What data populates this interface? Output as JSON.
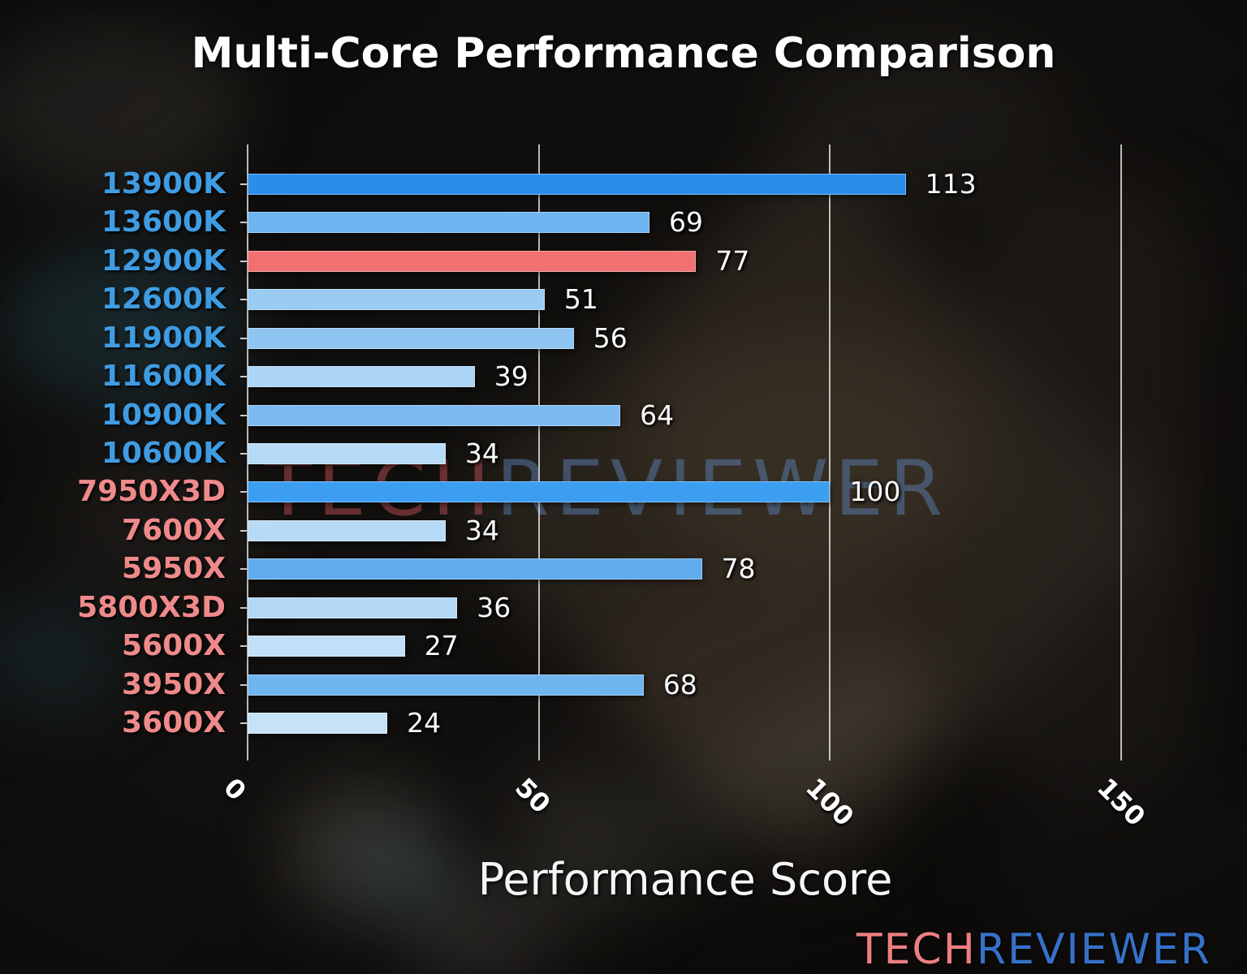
{
  "chart_data": {
    "type": "bar",
    "orientation": "horizontal",
    "title": "Multi-Core Performance Comparison",
    "xlabel": "Performance Score",
    "xlim": [
      0,
      161
    ],
    "xticks": [
      "0",
      "50",
      "100",
      "150"
    ],
    "xtick_values": [
      0,
      50,
      100,
      150
    ],
    "grid": true,
    "legend": "none",
    "categories": [
      "13900K",
      "13600K",
      "12900K",
      "12600K",
      "11900K",
      "11600K",
      "10900K",
      "10600K",
      "7950X3D",
      "7600X",
      "5950X",
      "5800X3D",
      "5600X",
      "3950X",
      "3600X"
    ],
    "values": [
      113,
      69,
      77,
      51,
      56,
      39,
      64,
      34,
      100,
      34,
      78,
      36,
      27,
      68,
      24
    ],
    "value_labels": [
      "113",
      "69",
      "77",
      "51",
      "56",
      "39",
      "64",
      "34",
      "100",
      "34",
      "78",
      "36",
      "27",
      "68",
      "24"
    ],
    "bar_colors": [
      "#2a8ee9",
      "#6db4f0",
      "#f17070",
      "#99cbf3",
      "#8dc4f2",
      "#abd4f5",
      "#7cbbf1",
      "#b7daf6",
      "#3b9ef1",
      "#b7daf6",
      "#5fabee",
      "#b2d8f5",
      "#c1dff7",
      "#6fb5f0",
      "#c6e2f8"
    ],
    "label_colors": [
      "#3f9ce2",
      "#3f9ce2",
      "#3f9ce2",
      "#3f9ce2",
      "#3f9ce2",
      "#3f9ce2",
      "#3f9ce2",
      "#3f9ce2",
      "#ef8a8a",
      "#ef8a8a",
      "#ef8a8a",
      "#ef8a8a",
      "#ef8a8a",
      "#ef8a8a",
      "#ef8a8a"
    ],
    "highlight_category": "12900K",
    "highlight_color": "#f17070",
    "grid_color": "#e9e6e3",
    "value_text_color": "#fafafa"
  },
  "watermark": {
    "text_left": "TECH",
    "text_right": "REVIEWER",
    "color_left": "rgba(190,78,84,0.5)",
    "color_right": "rgba(96,138,196,0.45)"
  },
  "logo": {
    "text_left": "TECH",
    "text_right": "REVIEWER",
    "color_left": "#ec7f81",
    "color_right": "#3671c9"
  }
}
